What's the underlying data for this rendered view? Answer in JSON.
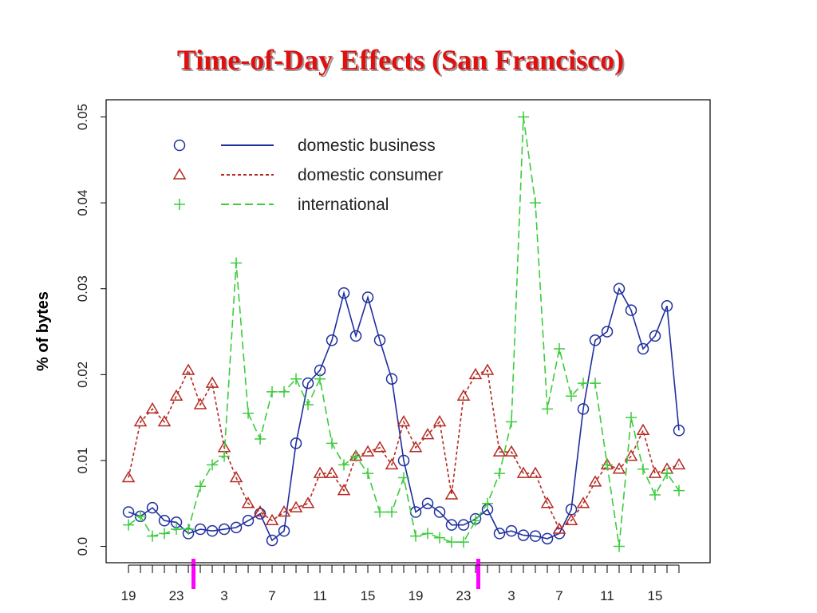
{
  "chart_data": {
    "type": "line",
    "title": "Time-of-Day Effects (San Francisco)",
    "y_label": "% of bytes",
    "x": [
      0,
      1,
      2,
      3,
      4,
      5,
      6,
      7,
      8,
      9,
      10,
      11,
      12,
      13,
      14,
      15,
      16,
      17,
      18,
      19,
      20,
      21,
      22,
      23,
      24,
      25,
      26,
      27,
      28,
      29,
      30,
      31,
      32,
      33,
      34,
      35,
      36,
      37,
      38,
      39,
      40,
      41,
      42,
      43,
      44,
      45,
      46
    ],
    "xlim": [
      -1.87,
      48.6
    ],
    "xticks": [
      {
        "value": 0,
        "label": "19"
      },
      {
        "value": 4,
        "label": "23"
      },
      {
        "value": 8,
        "label": "3"
      },
      {
        "value": 12,
        "label": "7"
      },
      {
        "value": 16,
        "label": "11"
      },
      {
        "value": 20,
        "label": "15"
      },
      {
        "value": 24,
        "label": "19"
      },
      {
        "value": 28,
        "label": "23"
      },
      {
        "value": 32,
        "label": "3"
      },
      {
        "value": 36,
        "label": "7"
      },
      {
        "value": 40,
        "label": "11"
      },
      {
        "value": 44,
        "label": "15"
      }
    ],
    "ylim": [
      -0.0019,
      0.052
    ],
    "yticks": [
      {
        "value": 0,
        "label": "0.0"
      },
      0.01,
      0.02,
      0.03,
      0.04,
      0.05
    ],
    "legend": "upper left",
    "series": [
      {
        "name": "domestic business",
        "color": "#1f2f9e",
        "marker": "circle",
        "dash": "solid",
        "values": [
          0.004,
          0.0035,
          0.0045,
          0.003,
          0.0028,
          0.0015,
          0.002,
          0.0018,
          0.002,
          0.0022,
          0.003,
          0.0038,
          0.0007,
          0.0018,
          0.012,
          0.019,
          0.0205,
          0.024,
          0.0295,
          0.0245,
          0.029,
          0.024,
          0.0195,
          0.01,
          0.004,
          0.005,
          0.004,
          0.0025,
          0.0025,
          0.0032,
          0.0043,
          0.0015,
          0.0018,
          0.0013,
          0.0012,
          0.0009,
          0.0015,
          0.0043,
          0.016,
          0.024,
          0.025,
          0.03,
          0.0275,
          0.023,
          0.0245,
          0.028,
          0.0135
        ]
      },
      {
        "name": "domestic consumer",
        "color": "#b52a22",
        "marker": "triangle",
        "dash": "short",
        "values": [
          0.008,
          0.0145,
          0.016,
          0.0145,
          0.0175,
          0.0205,
          0.0165,
          0.019,
          0.0115,
          0.008,
          0.005,
          0.004,
          0.003,
          0.004,
          0.0045,
          0.005,
          0.0085,
          0.0085,
          0.0065,
          0.0105,
          0.011,
          0.0115,
          0.0095,
          0.0145,
          0.0115,
          0.013,
          0.0145,
          0.006,
          0.0175,
          0.02,
          0.0205,
          0.011,
          0.011,
          0.0085,
          0.0085,
          0.005,
          0.002,
          0.003,
          0.005,
          0.0075,
          0.0095,
          0.009,
          0.0105,
          0.0135,
          0.0085,
          0.009,
          0.0095
        ]
      },
      {
        "name": "international",
        "color": "#3ccc3c",
        "marker": "plus",
        "dash": "long",
        "values": [
          0.0025,
          0.0035,
          0.0012,
          0.0015,
          0.002,
          0.002,
          0.007,
          0.0095,
          0.0105,
          0.033,
          0.0155,
          0.0125,
          0.018,
          0.018,
          0.0195,
          0.0165,
          0.0195,
          0.012,
          0.0095,
          0.0105,
          0.0085,
          0.004,
          0.004,
          0.008,
          0.0012,
          0.0015,
          0.001,
          0.0005,
          0.0005,
          0.003,
          0.005,
          0.0085,
          0.0145,
          0.05,
          0.04,
          0.016,
          0.023,
          0.0175,
          0.019,
          0.019,
          0.0095,
          0.0,
          0.015,
          0.009,
          0.006,
          0.0085,
          0.0065
        ]
      }
    ]
  }
}
